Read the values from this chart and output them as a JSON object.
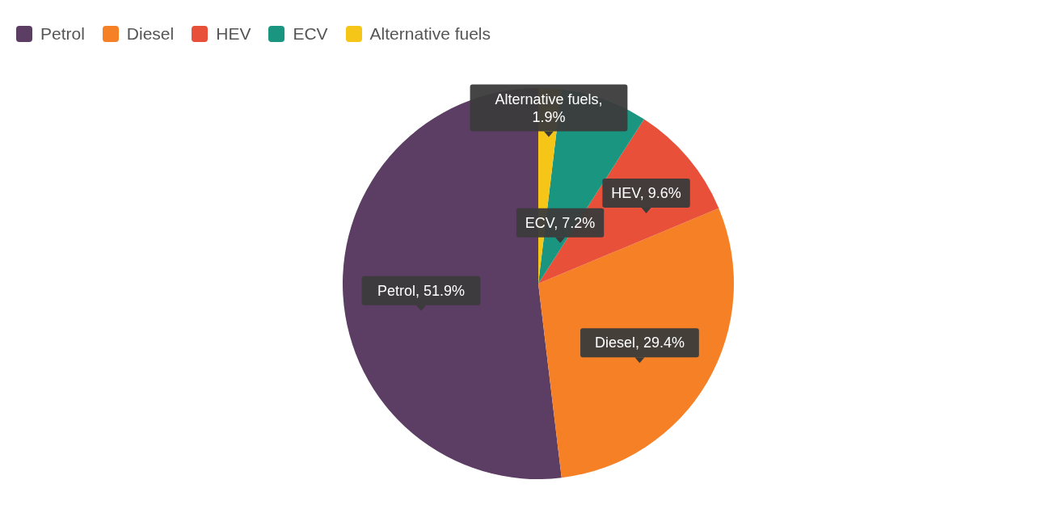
{
  "chart_data": {
    "type": "pie",
    "categories": [
      "Petrol",
      "Diesel",
      "HEV",
      "ECV",
      "Alternative fuels"
    ],
    "values": [
      51.9,
      29.4,
      9.6,
      7.2,
      1.9
    ],
    "colors": [
      "#5c3d63",
      "#f58025",
      "#e8503a",
      "#1a9580",
      "#f5c518"
    ],
    "value_labels": [
      "Petrol, 51.9%",
      "Diesel, 29.4%",
      "HEV, 9.6%",
      "ECV, 7.2%",
      "Alternative fuels, 1.9%"
    ],
    "legend": "top left"
  }
}
